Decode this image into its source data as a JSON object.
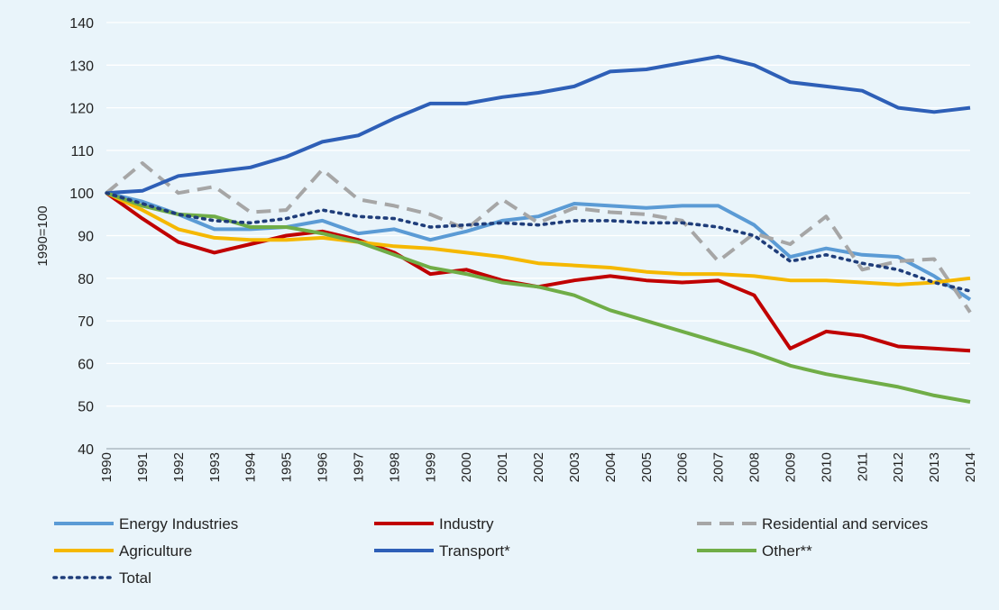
{
  "chart_data": {
    "type": "line",
    "title": "",
    "xlabel": "",
    "ylabel": "1990=100",
    "ylim": [
      40,
      140
    ],
    "yticks": [
      40,
      50,
      60,
      70,
      80,
      90,
      100,
      110,
      120,
      130,
      140
    ],
    "grid": "horizontal",
    "legend_position": "bottom",
    "x": [
      "1990",
      "1991",
      "1992",
      "1993",
      "1994",
      "1995",
      "1996",
      "1997",
      "1998",
      "1999",
      "2000",
      "2001",
      "2002",
      "2003",
      "2004",
      "2005",
      "2006",
      "2007",
      "2008",
      "2009",
      "2010",
      "2011",
      "2012",
      "2013",
      "2014"
    ],
    "series": [
      {
        "name": "Energy Industries",
        "color": "#5b9bd5",
        "style": "solid",
        "values": [
          100,
          98,
          95,
          91.5,
          91.5,
          92,
          93.5,
          90.5,
          91.5,
          89,
          91,
          93.5,
          94.5,
          97.5,
          97,
          96.5,
          97,
          97,
          92.5,
          85,
          87,
          85.5,
          85,
          80.5,
          75
        ]
      },
      {
        "name": "Industry",
        "color": "#c00000",
        "style": "solid",
        "values": [
          100,
          94,
          88.5,
          86,
          88,
          90,
          91,
          89,
          86,
          81,
          82,
          79.5,
          78,
          79.5,
          80.5,
          79.5,
          79,
          79.5,
          76,
          63.5,
          67.5,
          66.5,
          64,
          63.5,
          63
        ]
      },
      {
        "name": "Residential and services",
        "color": "#a6a6a6",
        "style": "dashed",
        "values": [
          100,
          107,
          100,
          101.5,
          95.5,
          96,
          105.5,
          98.5,
          97,
          95,
          91.5,
          98.5,
          93,
          96.5,
          95.5,
          95,
          93.5,
          84,
          90.5,
          88,
          94.5,
          82,
          84,
          84.5,
          72
        ]
      },
      {
        "name": "Agriculture",
        "color": "#f5b800",
        "style": "solid",
        "values": [
          100,
          96,
          91.5,
          89.5,
          89,
          89,
          89.5,
          88.5,
          87.5,
          87,
          86,
          85,
          83.5,
          83,
          82.5,
          81.5,
          81,
          81,
          80.5,
          79.5,
          79.5,
          79,
          78.5,
          79,
          80
        ]
      },
      {
        "name": "Transport*",
        "color": "#2e5fb7",
        "style": "solid",
        "values": [
          100,
          100.5,
          104,
          105,
          106,
          108.5,
          112,
          113.5,
          117.5,
          121,
          121,
          122.5,
          123.5,
          125,
          128.5,
          129,
          130.5,
          132,
          130,
          126,
          125,
          124,
          120,
          119,
          120
        ]
      },
      {
        "name": "Other**",
        "color": "#70ad47",
        "style": "solid",
        "values": [
          100,
          97,
          95,
          94.5,
          92,
          92,
          90.5,
          88.5,
          85.5,
          82.5,
          81,
          79,
          78,
          76,
          72.5,
          70,
          67.5,
          65,
          62.5,
          59.5,
          57.5,
          56,
          54.5,
          52.5,
          51
        ]
      },
      {
        "name": "Total",
        "color": "#1f3d7a",
        "style": "dotted",
        "values": [
          100,
          97.5,
          95,
          93.5,
          93,
          94,
          96,
          94.5,
          94,
          92,
          92.5,
          93,
          92.5,
          93.5,
          93.5,
          93,
          93,
          92,
          90,
          84,
          85.5,
          83.5,
          82,
          79,
          77
        ]
      }
    ]
  }
}
